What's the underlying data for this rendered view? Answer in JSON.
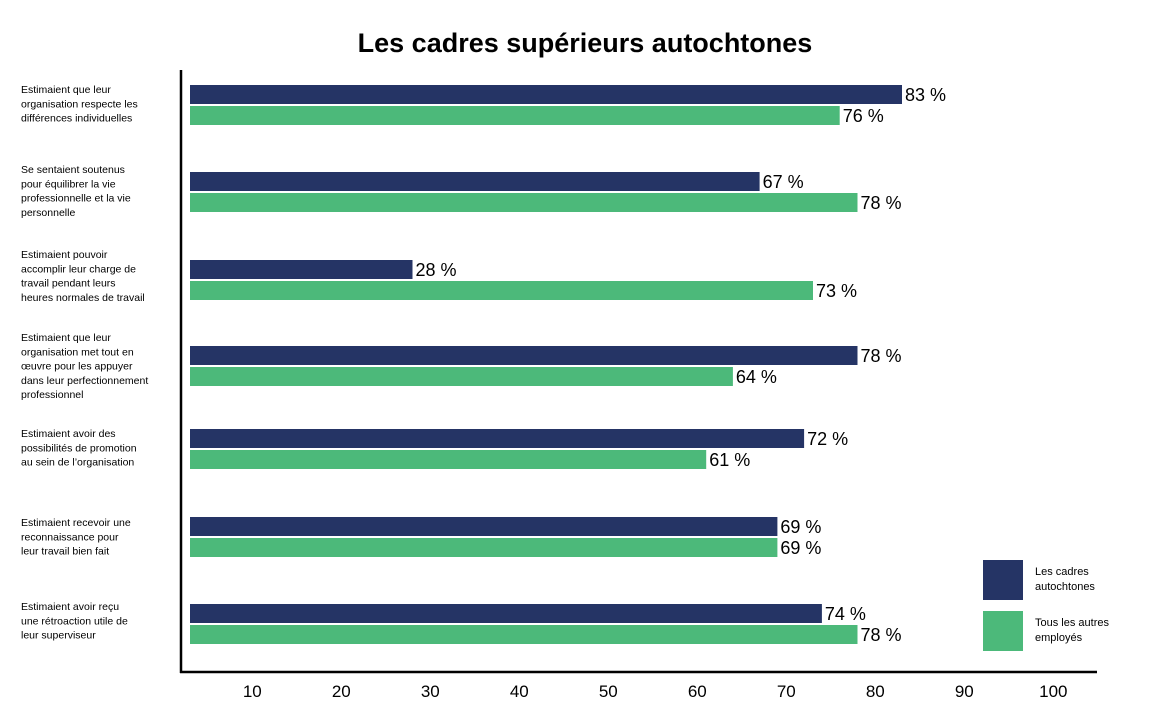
{
  "chart_data": {
    "type": "bar",
    "orientation": "horizontal",
    "title": "Les cadres supérieurs autochtones",
    "categories": [
      [
        "Estimaient que leur",
        "organisation respecte les",
        "différences individuelles"
      ],
      [
        "Se sentaient soutenus",
        "pour équilibrer la vie",
        "professionnelle et la vie",
        "personnelle"
      ],
      [
        "Estimaient pouvoir",
        "accomplir leur charge de",
        "travail pendant leurs",
        "heures normales de travail"
      ],
      [
        "Estimaient que leur",
        "organisation met tout en",
        "œuvre pour les appuyer",
        "dans leur perfectionnement",
        "professionnel"
      ],
      [
        "Estimaient avoir des",
        "possibilités de promotion",
        "au sein de l’organisation"
      ],
      [
        "Estimaient recevoir une",
        "reconnaissance pour",
        "leur travail bien fait"
      ],
      [
        "Estimaient avoir reçu",
        "une rétroaction utile de",
        "leur superviseur"
      ]
    ],
    "series": [
      {
        "name": [
          "Les cadres",
          "autochtones"
        ],
        "color": "#253465",
        "values": [
          83,
          67,
          28,
          78,
          72,
          69,
          74
        ],
        "labels": [
          "83 %",
          "67 %",
          "28 %",
          "78 %",
          "72 %",
          "69 %",
          "74 %"
        ]
      },
      {
        "name": [
          "Tous les autres",
          "employés"
        ],
        "color": "#4cb97a",
        "values": [
          76,
          78,
          73,
          64,
          61,
          69,
          78
        ],
        "labels": [
          "76 %",
          "78 %",
          "73 %",
          "64 %",
          "61 %",
          "69 %",
          "78 %"
        ]
      }
    ],
    "x_ticks": [
      "10",
      "20",
      "30",
      "40",
      "50",
      "60",
      "70",
      "80",
      "90",
      "100"
    ],
    "xlim": [
      3,
      102
    ],
    "grid": false,
    "legend_position": "bottom-right"
  }
}
